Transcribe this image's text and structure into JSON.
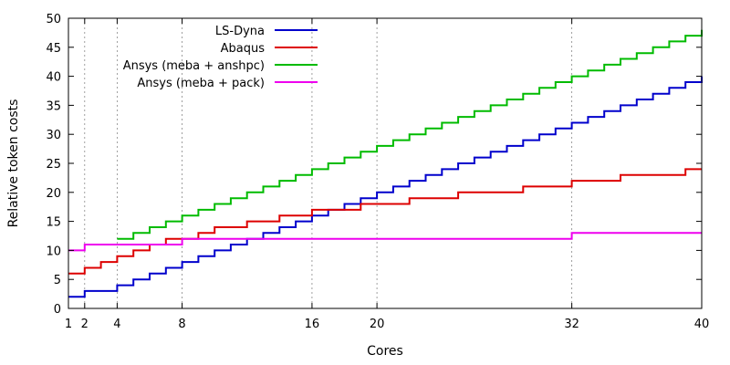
{
  "chart_data": {
    "type": "line",
    "xlabel": "Cores",
    "ylabel": "Relative token costs",
    "xlim": [
      1,
      40
    ],
    "ylim": [
      0,
      50
    ],
    "xticks": [
      1,
      2,
      4,
      8,
      16,
      20,
      32,
      40
    ],
    "yticks": [
      0,
      5,
      10,
      15,
      20,
      25,
      30,
      35,
      40,
      45,
      50
    ],
    "x_grid": [
      2,
      4,
      8,
      16,
      20,
      32
    ],
    "legend_position": "top-right",
    "step": "post",
    "series": [
      {
        "name": "LS-Dyna",
        "color": "#0000cc",
        "x": [
          1,
          2,
          3,
          4,
          5,
          6,
          7,
          8,
          9,
          10,
          11,
          12,
          13,
          14,
          15,
          16,
          17,
          18,
          19,
          20,
          21,
          22,
          23,
          24,
          25,
          26,
          27,
          28,
          29,
          30,
          31,
          32,
          33,
          34,
          35,
          36,
          37,
          38,
          39,
          40
        ],
        "y": [
          2,
          3,
          3,
          4,
          5,
          6,
          7,
          8,
          9,
          10,
          11,
          12,
          13,
          14,
          15,
          16,
          17,
          18,
          19,
          20,
          21,
          22,
          23,
          24,
          25,
          26,
          27,
          28,
          29,
          30,
          31,
          32,
          33,
          34,
          35,
          36,
          37,
          38,
          39,
          40
        ]
      },
      {
        "name": "Abaqus",
        "color": "#dd0000",
        "x": [
          1,
          2,
          3,
          4,
          5,
          6,
          7,
          8,
          9,
          10,
          11,
          12,
          13,
          14,
          15,
          16,
          17,
          18,
          19,
          20,
          21,
          22,
          23,
          24,
          25,
          26,
          27,
          28,
          29,
          30,
          31,
          32,
          33,
          34,
          35,
          36,
          37,
          38,
          39,
          40
        ],
        "y": [
          6,
          7,
          8,
          9,
          10,
          11,
          12,
          12,
          13,
          14,
          14,
          15,
          15,
          16,
          16,
          17,
          17,
          17,
          18,
          18,
          18,
          19,
          19,
          19,
          20,
          20,
          20,
          20,
          21,
          21,
          21,
          22,
          22,
          22,
          23,
          23,
          23,
          23,
          24,
          24
        ]
      },
      {
        "name": "Ansys (meba + anshpc)",
        "color": "#00bb00",
        "x": [
          4,
          5,
          6,
          7,
          8,
          9,
          10,
          11,
          12,
          13,
          14,
          15,
          16,
          17,
          18,
          19,
          20,
          21,
          22,
          23,
          24,
          25,
          26,
          27,
          28,
          29,
          30,
          31,
          32,
          33,
          34,
          35,
          36,
          37,
          38,
          39,
          40
        ],
        "y": [
          12,
          13,
          14,
          15,
          16,
          17,
          18,
          19,
          20,
          21,
          22,
          23,
          24,
          25,
          26,
          27,
          28,
          29,
          30,
          31,
          32,
          33,
          34,
          35,
          36,
          37,
          38,
          39,
          40,
          41,
          42,
          43,
          44,
          45,
          46,
          47,
          48
        ]
      },
      {
        "name": "Ansys (meba + pack)",
        "color": "#ee00ee",
        "x": [
          1,
          2,
          8,
          32,
          40
        ],
        "y": [
          10,
          11,
          12,
          13,
          13
        ]
      }
    ]
  }
}
